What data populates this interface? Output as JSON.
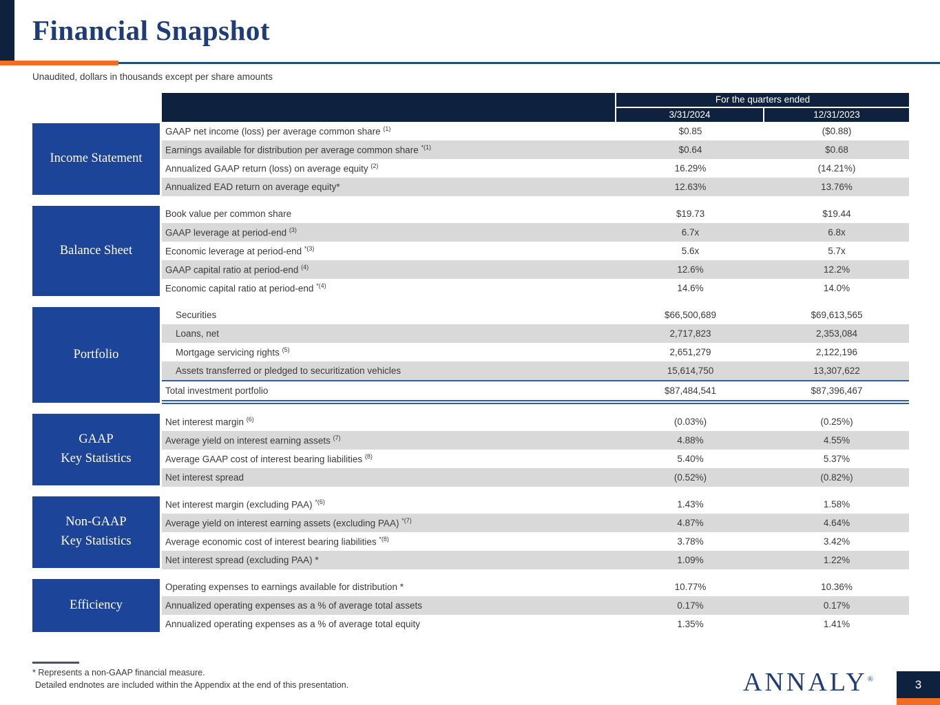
{
  "slide": {
    "title": "Financial Snapshot",
    "subtitle": "Unaudited, dollars in thousands except per share amounts",
    "page_number": "3",
    "logo_text": "ANNALY",
    "logo_mark": "®"
  },
  "table": {
    "header_group": "For the quarters ended",
    "columns": [
      "3/31/2024",
      "12/31/2023"
    ],
    "sections": [
      {
        "name_lines": [
          "Income Statement"
        ],
        "rows": [
          {
            "label": "GAAP net income (loss) per average common share ",
            "sup": "(1)",
            "values": [
              "$0.85",
              "($0.88)"
            ]
          },
          {
            "label": "Earnings available for distribution per average common share ",
            "sup": "*(1)",
            "values": [
              "$0.64",
              "$0.68"
            ]
          },
          {
            "label": "Annualized GAAP return (loss) on average equity ",
            "sup": "(2)",
            "values": [
              "16.29%",
              "(14.21%)"
            ]
          },
          {
            "label": "Annualized EAD return on average equity*",
            "sup": "",
            "values": [
              "12.63%",
              "13.76%"
            ]
          }
        ]
      },
      {
        "name_lines": [
          "Balance Sheet"
        ],
        "rows": [
          {
            "label": "Book value per common share",
            "sup": "",
            "values": [
              "$19.73",
              "$19.44"
            ]
          },
          {
            "label": "GAAP leverage at period-end ",
            "sup": "(3)",
            "values": [
              "6.7x",
              "6.8x"
            ]
          },
          {
            "label": "Economic leverage at period-end ",
            "sup": "*(3)",
            "values": [
              "5.6x",
              "5.7x"
            ]
          },
          {
            "label": "GAAP capital ratio at period-end ",
            "sup": "(4)",
            "values": [
              "12.6%",
              "12.2%"
            ]
          },
          {
            "label": "Economic capital ratio at period-end ",
            "sup": "*(4)",
            "values": [
              "14.6%",
              "14.0%"
            ]
          }
        ]
      },
      {
        "name_lines": [
          "Portfolio"
        ],
        "rows": [
          {
            "label": "Securities",
            "sup": "",
            "indent": true,
            "values": [
              "$66,500,689",
              "$69,613,565"
            ]
          },
          {
            "label": "Loans, net",
            "sup": "",
            "indent": true,
            "values": [
              "2,717,823",
              "2,353,084"
            ]
          },
          {
            "label": "Mortgage servicing rights ",
            "sup": "(5)",
            "indent": true,
            "values": [
              "2,651,279",
              "2,122,196"
            ]
          },
          {
            "label": "Assets transferred or pledged to securitization vehicles",
            "sup": "",
            "indent": true,
            "values": [
              "15,614,750",
              "13,307,622"
            ]
          },
          {
            "label": "Total investment portfolio",
            "sup": "",
            "total": true,
            "values": [
              "$87,484,541",
              "$87,396,467"
            ]
          }
        ]
      },
      {
        "name_lines": [
          "GAAP",
          "Key Statistics"
        ],
        "rows": [
          {
            "label": "Net interest margin ",
            "sup": "(6)",
            "values": [
              "(0.03%)",
              "(0.25%)"
            ]
          },
          {
            "label": "Average yield on interest earning assets ",
            "sup": "(7)",
            "values": [
              "4.88%",
              "4.55%"
            ]
          },
          {
            "label": "Average GAAP cost of interest bearing liabilities ",
            "sup": "(8)",
            "values": [
              "5.40%",
              "5.37%"
            ]
          },
          {
            "label": "Net interest spread",
            "sup": "",
            "values": [
              "(0.52%)",
              "(0.82%)"
            ]
          }
        ]
      },
      {
        "name_lines": [
          "Non-GAAP",
          "Key Statistics"
        ],
        "rows": [
          {
            "label": "Net interest margin (excluding PAA) ",
            "sup": "*(6)",
            "values": [
              "1.43%",
              "1.58%"
            ]
          },
          {
            "label": "Average yield on interest earning assets (excluding PAA) ",
            "sup": "*(7)",
            "values": [
              "4.87%",
              "4.64%"
            ]
          },
          {
            "label": "Average economic cost of interest bearing liabilities ",
            "sup": "*(8)",
            "values": [
              "3.78%",
              "3.42%"
            ]
          },
          {
            "label": "Net interest spread (excluding PAA) *",
            "sup": "",
            "values": [
              "1.09%",
              "1.22%"
            ]
          }
        ]
      },
      {
        "name_lines": [
          "Efficiency"
        ],
        "rows": [
          {
            "label": "Operating expenses to earnings available for distribution *",
            "sup": "",
            "values": [
              "10.77%",
              "10.36%"
            ]
          },
          {
            "label": "Annualized operating expenses as a % of average total assets",
            "sup": "",
            "values": [
              "0.17%",
              "0.17%"
            ]
          },
          {
            "label": "Annualized operating expenses as a % of average total equity",
            "sup": "",
            "values": [
              "1.35%",
              "1.41%"
            ]
          }
        ]
      }
    ]
  },
  "footnotes": {
    "line1": "* Represents a non-GAAP financial measure.",
    "line2": "Detailed endnotes are included within the Appendix at the end of this presentation."
  },
  "colors": {
    "header_navy": "#0e2240",
    "sidebar_blue": "#1c4499",
    "accent_orange": "#f26c21",
    "rule_blue": "#1f4e79",
    "stripe_grey": "#d9d9d9",
    "title_blue": "#1e3d78",
    "total_border_blue": "#2d5ea6"
  }
}
